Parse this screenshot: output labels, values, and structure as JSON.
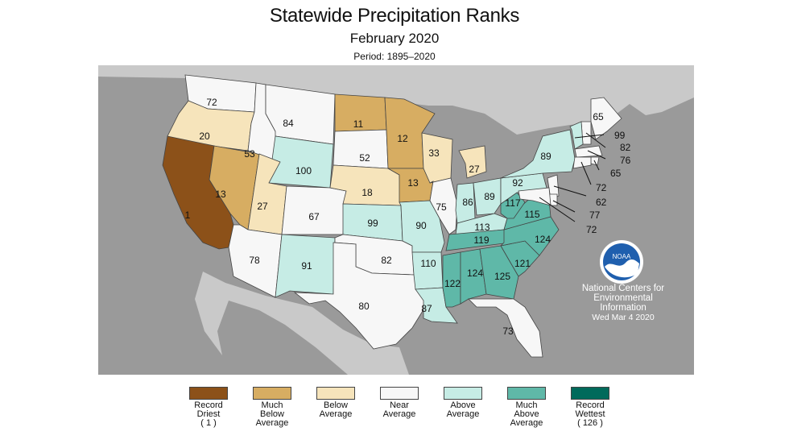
{
  "header": {
    "title": "Statewide Precipitation Ranks",
    "subtitle": "February 2020",
    "period": "Period: 1895–2020"
  },
  "credit": {
    "line1": "National Centers for",
    "line2": "Environmental",
    "line3": "Information",
    "date": "Wed Mar  4 2020",
    "logo_text": "NOAA"
  },
  "colors": {
    "ocean": "#9a9a9a",
    "land_other": "#c9c9c9",
    "border": "#444444"
  },
  "categories": [
    {
      "id": "record_driest",
      "label": "Record\nDriest\n( 1 )",
      "color": "#8c5119"
    },
    {
      "id": "much_below",
      "label": "Much\nBelow\nAverage",
      "color": "#d7ad62"
    },
    {
      "id": "below",
      "label": "Below\nAverage",
      "color": "#f6e4bb"
    },
    {
      "id": "near",
      "label": "Near\nAverage",
      "color": "#f7f7f7"
    },
    {
      "id": "above",
      "label": "Above\nAverage",
      "color": "#c6ece5"
    },
    {
      "id": "much_above",
      "label": "Much\nAbove\nAverage",
      "color": "#5fb8a8"
    },
    {
      "id": "record_wettest",
      "label": "Record\nWettest\n( 126 )",
      "color": "#006a5b"
    }
  ],
  "states": [
    {
      "abbr": "WA",
      "rank": "72",
      "category": "near"
    },
    {
      "abbr": "OR",
      "rank": "20",
      "category": "below"
    },
    {
      "abbr": "CA",
      "rank": "1",
      "category": "record_driest"
    },
    {
      "abbr": "NV",
      "rank": "13",
      "category": "much_below"
    },
    {
      "abbr": "ID",
      "rank": "53",
      "category": "near"
    },
    {
      "abbr": "MT",
      "rank": "84",
      "category": "near"
    },
    {
      "abbr": "WY",
      "rank": "100",
      "category": "above"
    },
    {
      "abbr": "UT",
      "rank": "27",
      "category": "below"
    },
    {
      "abbr": "AZ",
      "rank": "78",
      "category": "near"
    },
    {
      "abbr": "CO",
      "rank": "67",
      "category": "near"
    },
    {
      "abbr": "NM",
      "rank": "91",
      "category": "above"
    },
    {
      "abbr": "ND",
      "rank": "11",
      "category": "much_below"
    },
    {
      "abbr": "SD",
      "rank": "52",
      "category": "near"
    },
    {
      "abbr": "NE",
      "rank": "18",
      "category": "below"
    },
    {
      "abbr": "KS",
      "rank": "99",
      "category": "above"
    },
    {
      "abbr": "OK",
      "rank": "82",
      "category": "near"
    },
    {
      "abbr": "TX",
      "rank": "80",
      "category": "near"
    },
    {
      "abbr": "MN",
      "rank": "12",
      "category": "much_below"
    },
    {
      "abbr": "IA",
      "rank": "13",
      "category": "much_below"
    },
    {
      "abbr": "MO",
      "rank": "90",
      "category": "above"
    },
    {
      "abbr": "AR",
      "rank": "110",
      "category": "above"
    },
    {
      "abbr": "LA",
      "rank": "87",
      "category": "above"
    },
    {
      "abbr": "WI",
      "rank": "33",
      "category": "below"
    },
    {
      "abbr": "IL",
      "rank": "75",
      "category": "near"
    },
    {
      "abbr": "MI",
      "rank": "27",
      "category": "below"
    },
    {
      "abbr": "IN",
      "rank": "86",
      "category": "above"
    },
    {
      "abbr": "OH",
      "rank": "89",
      "category": "above"
    },
    {
      "abbr": "KY",
      "rank": "113",
      "category": "above"
    },
    {
      "abbr": "TN",
      "rank": "119",
      "category": "much_above"
    },
    {
      "abbr": "MS",
      "rank": "122",
      "category": "much_above"
    },
    {
      "abbr": "AL",
      "rank": "124",
      "category": "much_above"
    },
    {
      "abbr": "GA",
      "rank": "125",
      "category": "much_above"
    },
    {
      "abbr": "FL",
      "rank": "73",
      "category": "near"
    },
    {
      "abbr": "SC",
      "rank": "121",
      "category": "much_above"
    },
    {
      "abbr": "NC",
      "rank": "124",
      "category": "much_above"
    },
    {
      "abbr": "VA",
      "rank": "115",
      "category": "much_above"
    },
    {
      "abbr": "WV",
      "rank": "117",
      "category": "much_above"
    },
    {
      "abbr": "PA",
      "rank": "92",
      "category": "above"
    },
    {
      "abbr": "NY",
      "rank": "89",
      "category": "above"
    },
    {
      "abbr": "ME",
      "rank": "65",
      "category": "near"
    },
    {
      "abbr": "NH",
      "rank": "82",
      "category": "near"
    },
    {
      "abbr": "VT",
      "rank": "99",
      "category": "above"
    },
    {
      "abbr": "MA",
      "rank": "76",
      "category": "near"
    },
    {
      "abbr": "RI",
      "rank": "65",
      "category": "near"
    },
    {
      "abbr": "CT",
      "rank": "72",
      "category": "near"
    },
    {
      "abbr": "NJ",
      "rank": "62",
      "category": "near"
    },
    {
      "abbr": "DE",
      "rank": "77",
      "category": "near"
    },
    {
      "abbr": "MD",
      "rank": "72",
      "category": "near"
    }
  ]
}
